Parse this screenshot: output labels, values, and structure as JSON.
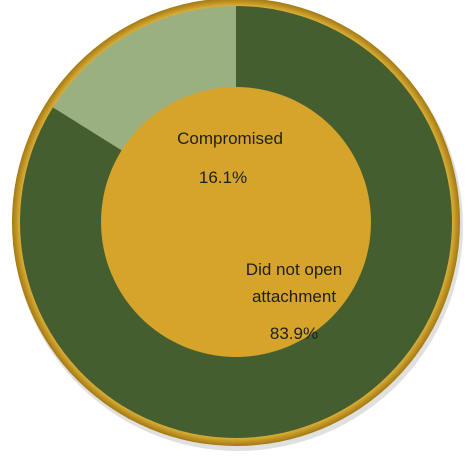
{
  "chart_data": {
    "type": "pie",
    "title": "",
    "slices": [
      {
        "label_lines": [
          "Compromised"
        ],
        "value": 16.1,
        "value_label": "16.1%",
        "color": "#9ab081"
      },
      {
        "label_lines": [
          "Did not open",
          "attachment"
        ],
        "value": 83.9,
        "value_label": "83.9%",
        "color": "#445e2f"
      }
    ],
    "start_angle_deg": 0,
    "direction": "counterclockwise",
    "donut_center_color": "#d6a42a",
    "rim_color": "#d6a42a",
    "legend": "none"
  }
}
